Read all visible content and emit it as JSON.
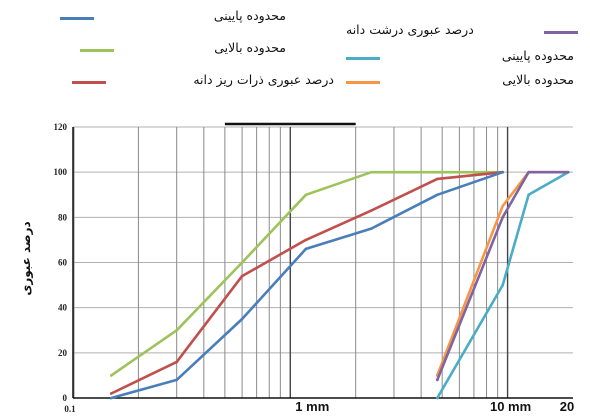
{
  "legend": [
    {
      "key": "fine_lower",
      "label": "محدوده پایینی"
    },
    {
      "key": "coarse_pass",
      "label": "درصد عبوری درشت دانه"
    },
    {
      "key": "fine_upper",
      "label": "محدوده بالایی"
    },
    {
      "key": "coarse_lower",
      "label": "محدوده پایینی"
    },
    {
      "key": "fine_pass",
      "label": "درصد عبوری ذرات ریز دانه"
    },
    {
      "key": "coarse_upper",
      "label": "محدوده بالایی"
    }
  ],
  "chart_data": {
    "type": "line",
    "xscale": "log",
    "xlim": [
      0.1,
      20
    ],
    "ylim": [
      0,
      120
    ],
    "ylabel": "درصد عبوری",
    "xlabel": "",
    "yticks": [
      "0",
      "20",
      "40",
      "60",
      "80",
      "100",
      "120"
    ],
    "xticks": [
      {
        "value": 0.1,
        "label": "0.1",
        "style": "small"
      },
      {
        "value": 1,
        "label": "1 mm",
        "style": "large"
      },
      {
        "value": 10,
        "label": "10 mm",
        "style": "large"
      },
      {
        "value": 20,
        "label": "20",
        "style": "large"
      }
    ],
    "grid": true,
    "series": [
      {
        "key": "fine_upper",
        "name": "محدوده بالایی",
        "color": "#9dc35a",
        "x": [
          0.15,
          0.3,
          0.6,
          1.18,
          2.36,
          4.75,
          9.5
        ],
        "y": [
          10,
          30,
          60,
          90,
          100,
          100,
          100
        ]
      },
      {
        "key": "fine_pass",
        "name": "درصد عبوری ذرات ریز دانه",
        "color": "#c0504d",
        "x": [
          0.15,
          0.3,
          0.6,
          1.18,
          2.36,
          4.75,
          9.5
        ],
        "y": [
          2,
          16,
          54,
          70,
          83,
          97,
          100
        ]
      },
      {
        "key": "fine_lower",
        "name": "محدوده پایینی",
        "color": "#4a7ebb",
        "x": [
          0.15,
          0.3,
          0.6,
          1.18,
          2.36,
          4.75,
          9.5
        ],
        "y": [
          0,
          8,
          35,
          66,
          75,
          90,
          100
        ]
      },
      {
        "key": "coarse_lower",
        "name": "محدوده پایینی",
        "color": "#4bacc6",
        "x": [
          4.75,
          9.5,
          12.5,
          19
        ],
        "y": [
          0,
          50,
          90,
          100
        ]
      },
      {
        "key": "coarse_upper",
        "name": "محدوده بالایی",
        "color": "#f79646",
        "x": [
          4.75,
          9.5,
          12.5,
          19
        ],
        "y": [
          10,
          85,
          100,
          100
        ]
      },
      {
        "key": "coarse_pass",
        "name": "درصد عبوری درشت دانه",
        "color": "#8064a2",
        "x": [
          4.75,
          9.5,
          12.5,
          19
        ],
        "y": [
          8,
          80,
          100,
          100
        ]
      }
    ]
  }
}
